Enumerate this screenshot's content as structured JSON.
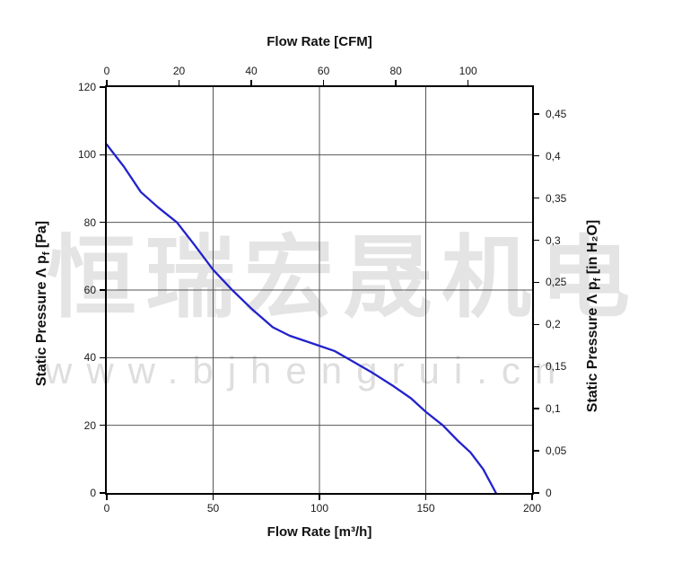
{
  "watermark": {
    "chinese": "恒瑞宏晟机电",
    "url": "www.bjhengrui.cn",
    "chinese_color": "#e4e4e4",
    "url_color": "#dedede"
  },
  "colors": {
    "background": "#ffffff",
    "axis_frame": "#000000",
    "grid": "#555555",
    "curve": "#2222cc"
  },
  "chart_data": {
    "type": "line",
    "title": "",
    "top_axis": {
      "title": "Flow Rate [CFM]",
      "ticks": [
        0,
        20,
        40,
        60,
        80,
        100
      ],
      "m3h_per_cfm": 1.699
    },
    "bottom_axis": {
      "title": "Flow Rate [m³/h]",
      "ticks": [
        0,
        50,
        100,
        150,
        200
      ],
      "range": [
        0,
        200
      ]
    },
    "left_axis": {
      "title_prefix": "Static Pressure Λ p",
      "title_sub": "f",
      "title_suffix": " [Pa]",
      "ticks": [
        0,
        20,
        40,
        60,
        80,
        100,
        120
      ],
      "range": [
        0,
        120
      ]
    },
    "right_axis": {
      "title_prefix": "Static Pressure Λ p",
      "title_sub": "f",
      "title_suffix": " [in H₂O]",
      "tick_labels": [
        "0",
        "0,05",
        "0,1",
        "0,15",
        "0,2",
        "0,25",
        "0,3",
        "0,35",
        "0,4",
        "0,45"
      ],
      "tick_values": [
        0,
        0.05,
        0.1,
        0.15,
        0.2,
        0.25,
        0.3,
        0.35,
        0.4,
        0.45
      ],
      "pa_per_inh2o": 249.09
    },
    "grid": {
      "vertical_m3h": [
        50,
        100,
        150
      ],
      "horizontal_pa": [
        20,
        40,
        60,
        80,
        100
      ]
    },
    "series": [
      {
        "name": "pressure-flow-curve",
        "color": "#2222cc",
        "points_m3h_pa": [
          [
            0,
            103
          ],
          [
            8,
            96.5
          ],
          [
            16,
            89
          ],
          [
            24,
            84.5
          ],
          [
            33,
            80
          ],
          [
            41,
            73.5
          ],
          [
            50,
            66
          ],
          [
            59,
            60
          ],
          [
            68,
            54.5
          ],
          [
            78,
            49
          ],
          [
            86,
            46.5
          ],
          [
            93,
            45
          ],
          [
            100,
            43.5
          ],
          [
            107,
            42
          ],
          [
            114,
            39.5
          ],
          [
            125,
            35.5
          ],
          [
            135,
            31.5
          ],
          [
            143,
            28
          ],
          [
            150,
            24
          ],
          [
            158,
            20
          ],
          [
            165,
            15.5
          ],
          [
            171,
            12
          ],
          [
            177,
            7
          ],
          [
            183,
            0
          ]
        ]
      }
    ]
  }
}
